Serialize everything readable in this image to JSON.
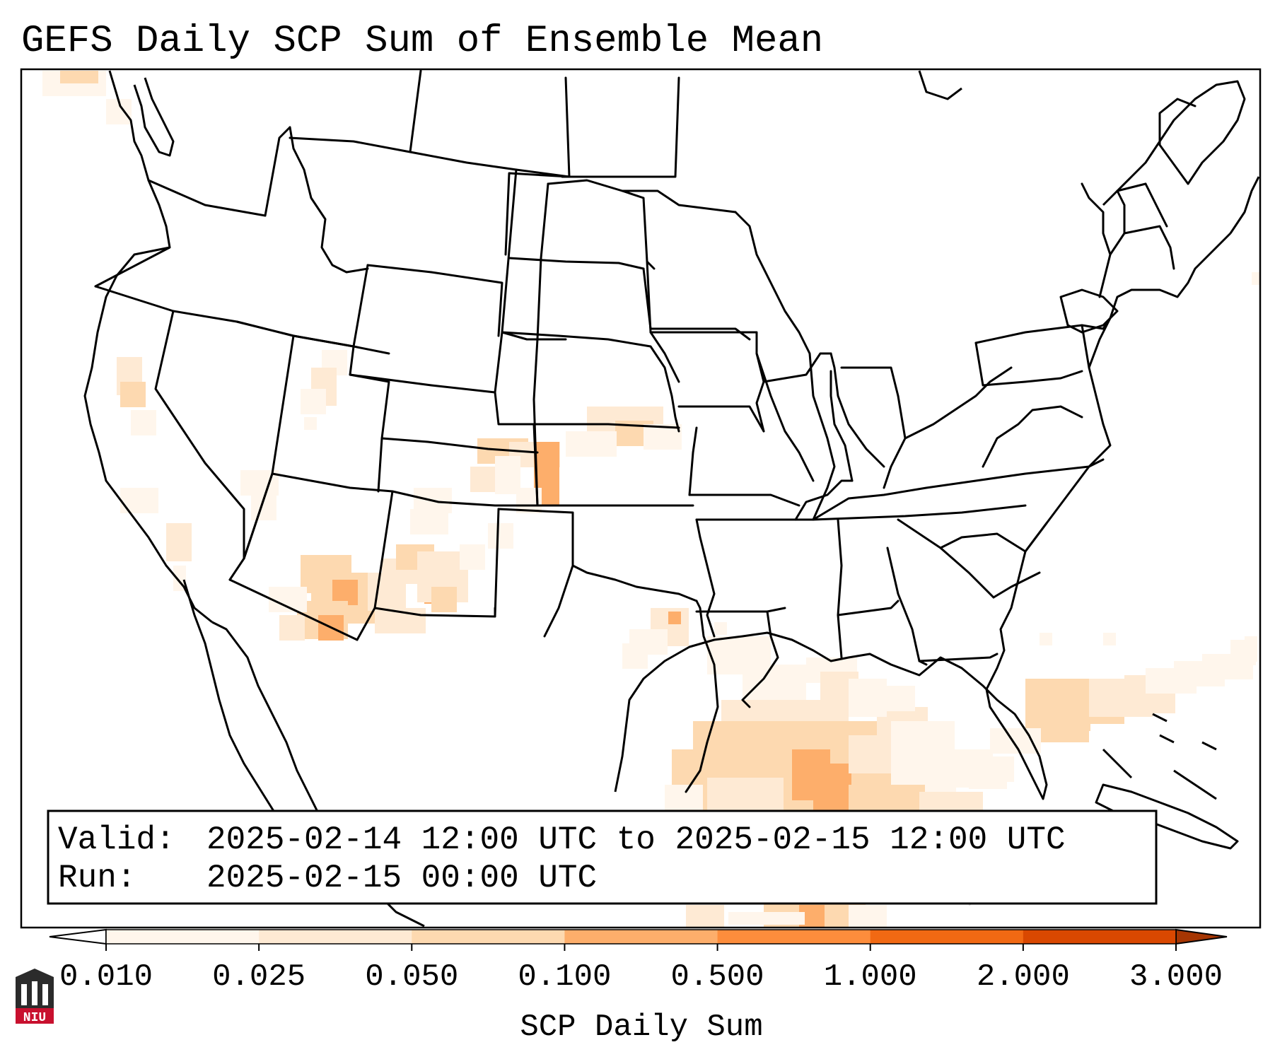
{
  "title": "GEFS Daily SCP Sum of Ensemble Mean",
  "info": {
    "valid_label": "Valid:",
    "valid_value": "2025-02-14 12:00 UTC to 2025-02-15 12:00 UTC",
    "run_label": "Run:",
    "run_value": "2025-02-15 00:00 UTC"
  },
  "colorbar": {
    "label": "SCP Daily Sum",
    "ticks": [
      "0.010",
      "0.025",
      "0.050",
      "0.100",
      "0.500",
      "1.000",
      "2.000",
      "3.000"
    ],
    "colors": [
      "#fff6ec",
      "#feead4",
      "#fdd9b0",
      "#fdae6b",
      "#fd8d3c",
      "#f16913",
      "#d94801"
    ],
    "under_color": "#ffffff",
    "over_color": "#a63603",
    "extend": "both"
  },
  "logo": {
    "text": "NIU",
    "color": "#c8102e"
  },
  "colors": {
    "coast": "#000000",
    "outside_domain": "#d8d8d8"
  }
}
